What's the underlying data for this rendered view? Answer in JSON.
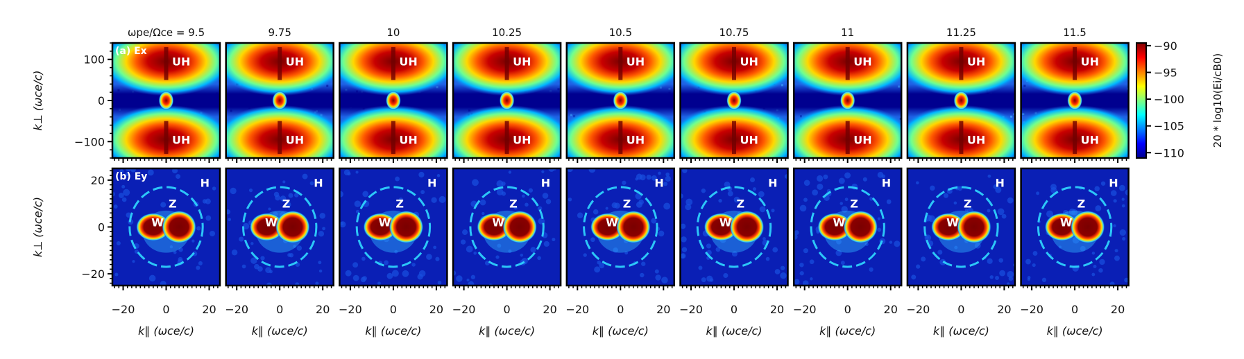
{
  "chart_data": {
    "type": "heatmap",
    "title_prefix": "ωpe/Ωce = ",
    "parameter_values": [
      "9.5",
      "9.75",
      "10",
      "10.25",
      "10.5",
      "10.75",
      "11",
      "11.25",
      "11.5"
    ],
    "rows": [
      {
        "panel_label": "(a) Ex",
        "ylabel": "k⊥ (ωce/c)",
        "ylim": [
          -140,
          140
        ],
        "yticks": [
          100,
          0,
          -100
        ],
        "xlim": [
          -25,
          25
        ],
        "annotations": [
          {
            "text": "UH",
            "k_par": 7,
            "k_perp": 95
          },
          {
            "text": "UH",
            "k_par": 7,
            "k_perp": -95
          }
        ],
        "features": "two intense lobes near k_perp = ±100 around k_par = 0, small bright spot at origin"
      },
      {
        "panel_label": "(b) Ey",
        "ylabel": "k⊥ (ωce/c)",
        "ylim": [
          -25,
          25
        ],
        "yticks": [
          20,
          0,
          -20
        ],
        "xlim": [
          -25,
          25
        ],
        "xticks": [
          -20,
          0,
          20
        ],
        "xlabel": "k∥ (ωce/c)",
        "annotations": [
          {
            "text": "H",
            "k_par": 18,
            "k_perp": 19
          },
          {
            "text": "Z",
            "k_par": 3,
            "k_perp": 10
          },
          {
            "text": "W",
            "k_par": -4,
            "k_perp": 2
          }
        ],
        "features": "ring of radius ~17, two saturated blobs at k_par ≈ ±6"
      }
    ],
    "colorbar": {
      "label": "20 * log10(Ei/cB0)",
      "range": [
        -111,
        -89.5
      ],
      "ticks": [
        "−90",
        "−95",
        "−100",
        "−105",
        "−110"
      ],
      "colormap": "jet"
    }
  }
}
